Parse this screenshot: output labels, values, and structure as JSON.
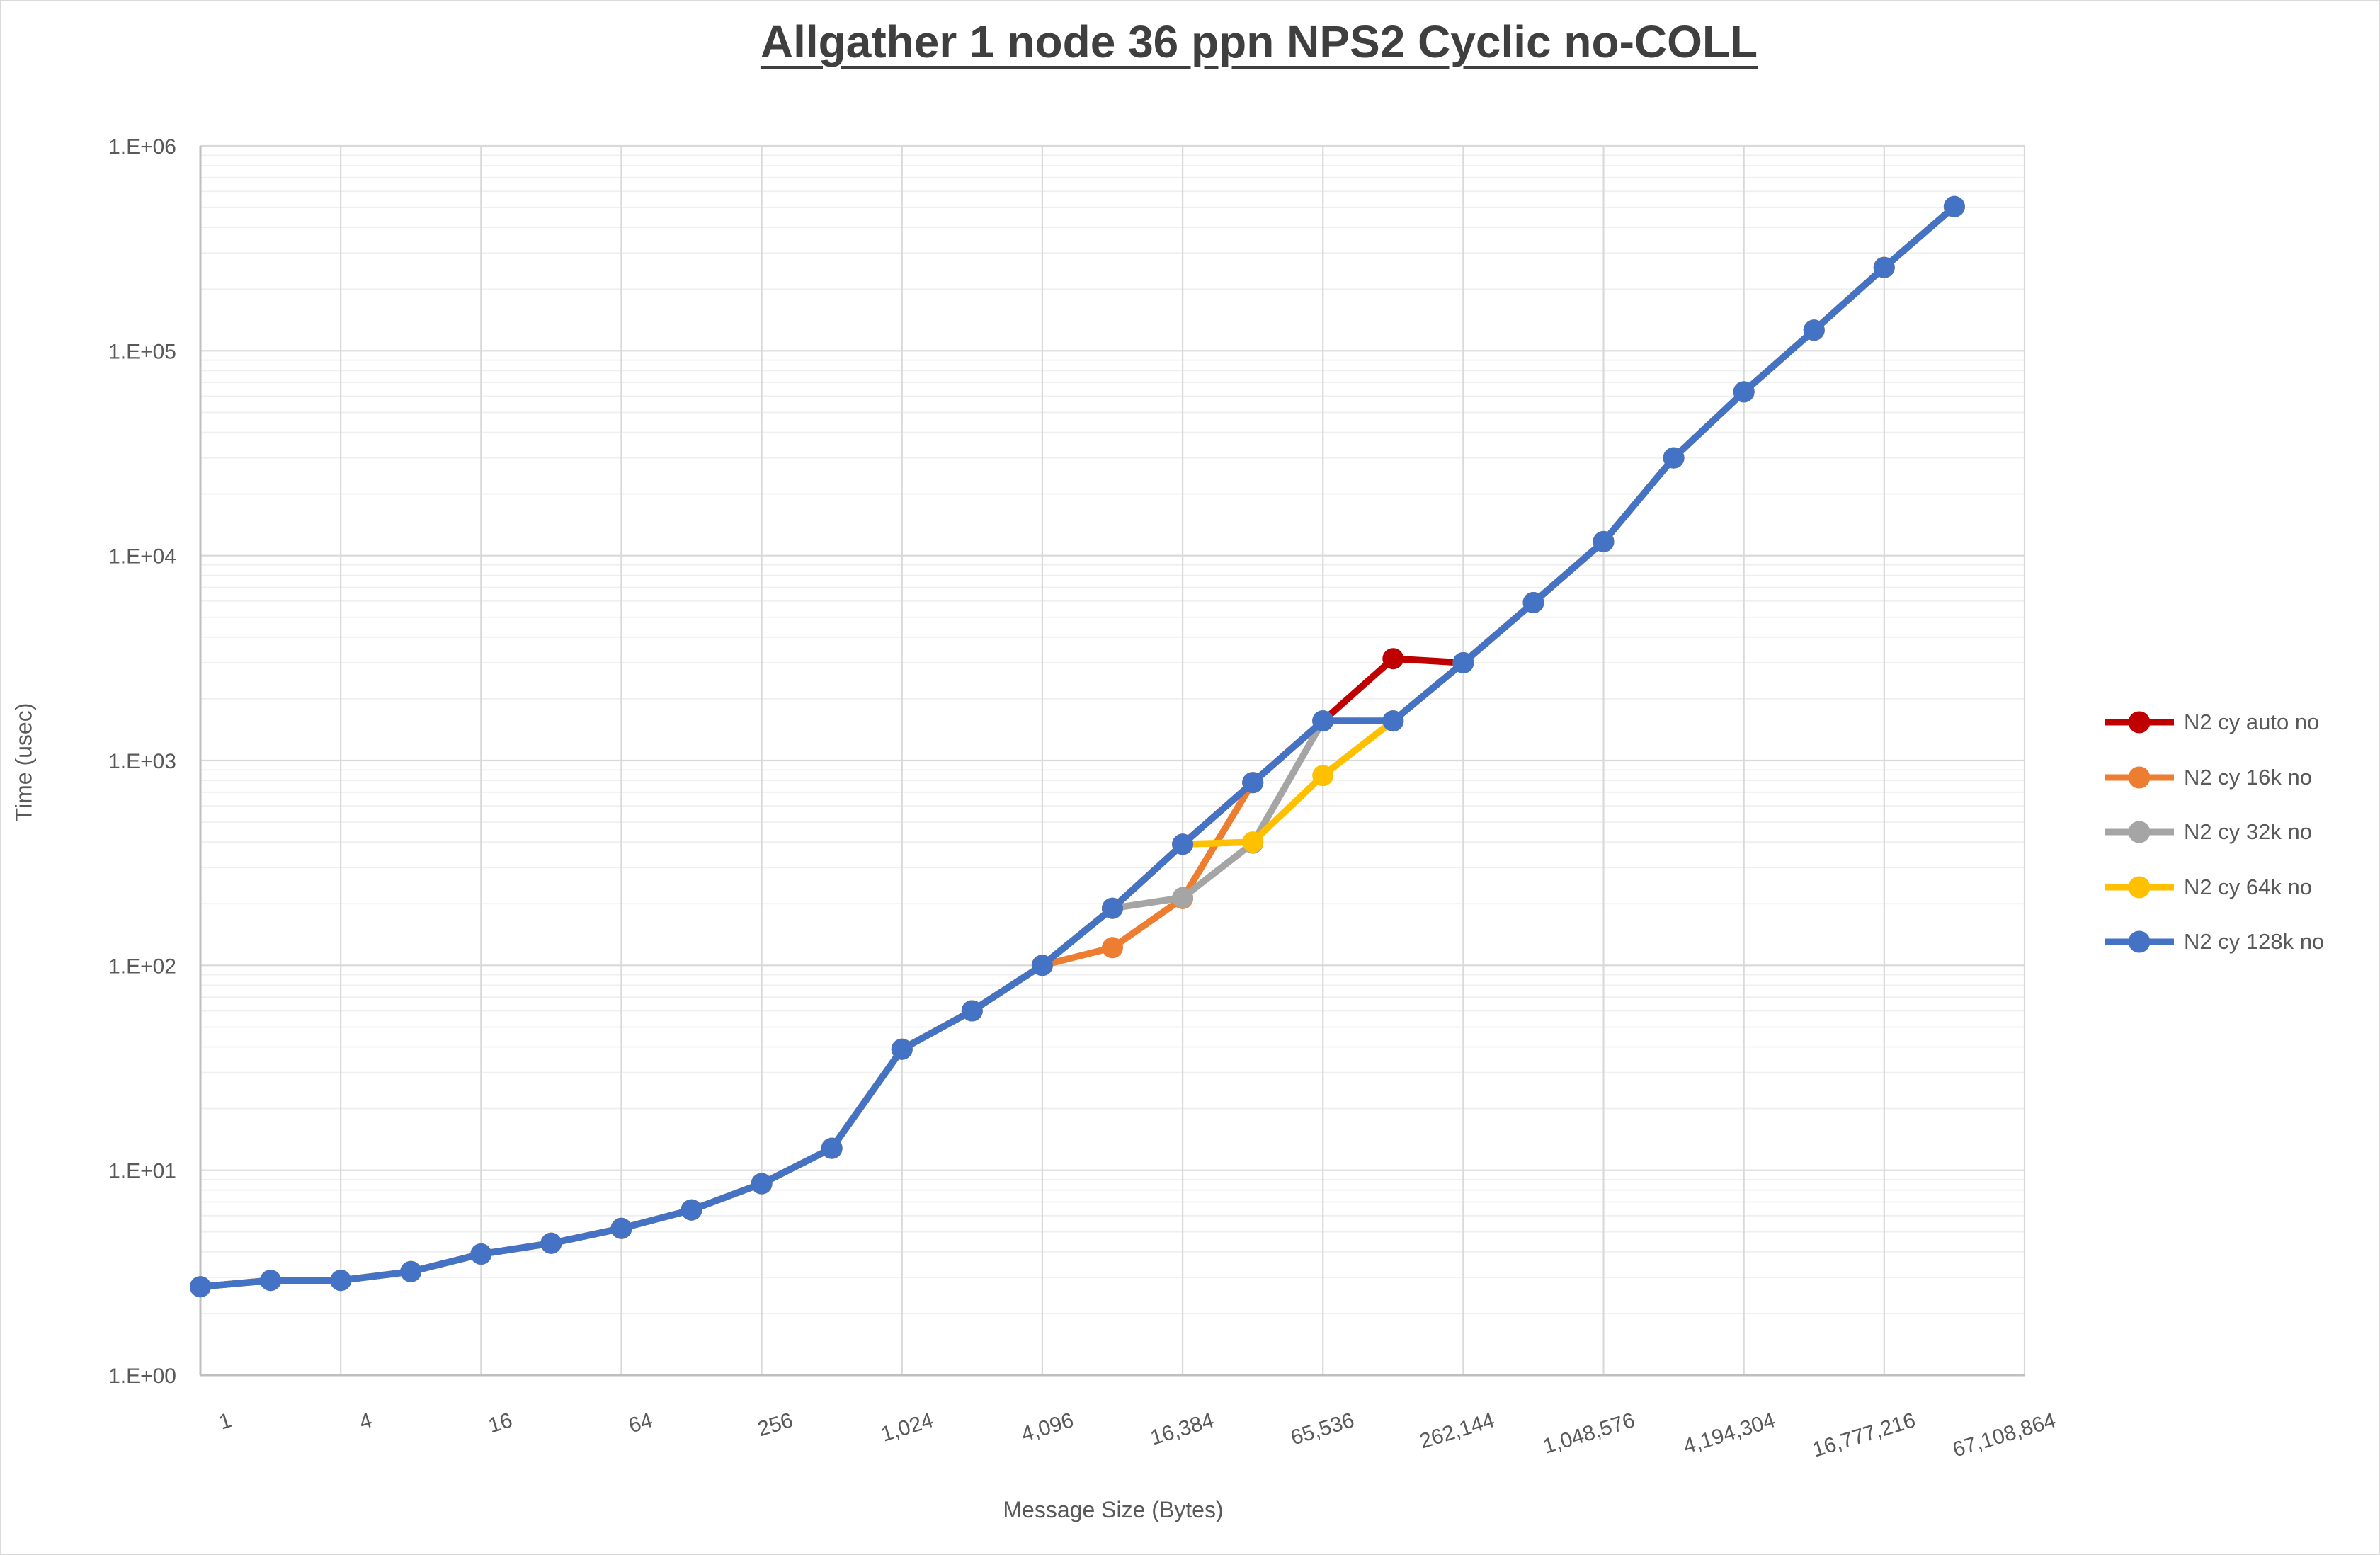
{
  "header": {
    "title": "Allgather 1 node 36 ppn NPS2 Cyclic no-COLL"
  },
  "axes": {
    "y": {
      "title": "Time (usec)",
      "tick_labels": [
        "1.E+00",
        "1.E+01",
        "1.E+02",
        "1.E+03",
        "1.E+04",
        "1.E+05",
        "1.E+06"
      ],
      "min_exponent": 0,
      "max_exponent": 6
    },
    "x": {
      "title": "Message Size (Bytes)",
      "tick_labels": [
        "1",
        "4",
        "16",
        "64",
        "256",
        "1,024",
        "4,096",
        "16,384",
        "65,536",
        "262,144",
        "1,048,576",
        "4,194,304",
        "16,777,216",
        "67,108,864"
      ]
    }
  },
  "legend": {
    "items": [
      {
        "label": "N2 cy auto no",
        "color": "#C00000"
      },
      {
        "label": "N2 cy 16k no",
        "color": "#ED7D31"
      },
      {
        "label": "N2 cy 32k no",
        "color": "#A5A5A5"
      },
      {
        "label": "N2 cy 64k no",
        "color": "#FFC000"
      },
      {
        "label": "N2 cy 128k no",
        "color": "#4472C4"
      }
    ],
    "position": "right"
  },
  "chart_data": {
    "type": "line",
    "title": "Allgather 1 node 36 ppn NPS2 Cyclic no-COLL",
    "xlabel": "Message Size (Bytes)",
    "ylabel": "Time (usec)",
    "x_scale": "log2-categorical",
    "y_scale": "log10",
    "ylim": [
      1,
      1000000
    ],
    "x_axis_last_tick": 67108864,
    "grid": {
      "x_major_every_4x": true,
      "y_major": true,
      "y_minor_log": true
    },
    "legend_position": "right",
    "x": [
      1,
      2,
      4,
      8,
      16,
      32,
      64,
      128,
      256,
      512,
      1024,
      2048,
      4096,
      8192,
      16384,
      32768,
      65536,
      131072,
      262144,
      524288,
      1048576,
      2097152,
      4194304,
      8388608,
      16777216,
      33554432
    ],
    "series": [
      {
        "name": "N2 cy auto no",
        "color": "#C00000",
        "values": [
          2.7,
          2.9,
          2.9,
          3.2,
          3.9,
          4.4,
          5.2,
          6.4,
          8.6,
          12.8,
          39,
          60,
          100,
          190,
          390,
          780,
          1560,
          3140,
          3000,
          5900,
          11700,
          30000,
          63000,
          126000,
          255000,
          505000
        ]
      },
      {
        "name": "N2 cy 16k no",
        "color": "#ED7D31",
        "values": [
          2.7,
          2.9,
          2.9,
          3.2,
          3.9,
          4.4,
          5.2,
          6.4,
          8.6,
          12.8,
          39,
          60,
          100,
          122,
          212,
          780,
          1560,
          1560,
          3000,
          5900,
          11700,
          30000,
          63000,
          126000,
          255000,
          505000
        ]
      },
      {
        "name": "N2 cy 32k no",
        "color": "#A5A5A5",
        "values": [
          2.7,
          2.9,
          2.9,
          3.2,
          3.9,
          4.4,
          5.2,
          6.4,
          8.6,
          12.8,
          39,
          60,
          100,
          190,
          214,
          395,
          1560,
          1560,
          3000,
          5900,
          11700,
          30000,
          63000,
          126000,
          255000,
          505000
        ]
      },
      {
        "name": "N2 cy 64k no",
        "color": "#FFC000",
        "values": [
          2.7,
          2.9,
          2.9,
          3.2,
          3.9,
          4.4,
          5.2,
          6.4,
          8.6,
          12.8,
          39,
          60,
          100,
          190,
          390,
          400,
          845,
          1560,
          3000,
          5900,
          11700,
          30000,
          63000,
          126000,
          255000,
          505000
        ]
      },
      {
        "name": "N2 cy 128k no",
        "color": "#4472C4",
        "values": [
          2.7,
          2.9,
          2.9,
          3.2,
          3.9,
          4.4,
          5.2,
          6.4,
          8.6,
          12.8,
          39,
          60,
          100,
          190,
          390,
          780,
          1560,
          1560,
          3000,
          5900,
          11700,
          30000,
          63000,
          126000,
          255000,
          505000
        ]
      }
    ]
  }
}
